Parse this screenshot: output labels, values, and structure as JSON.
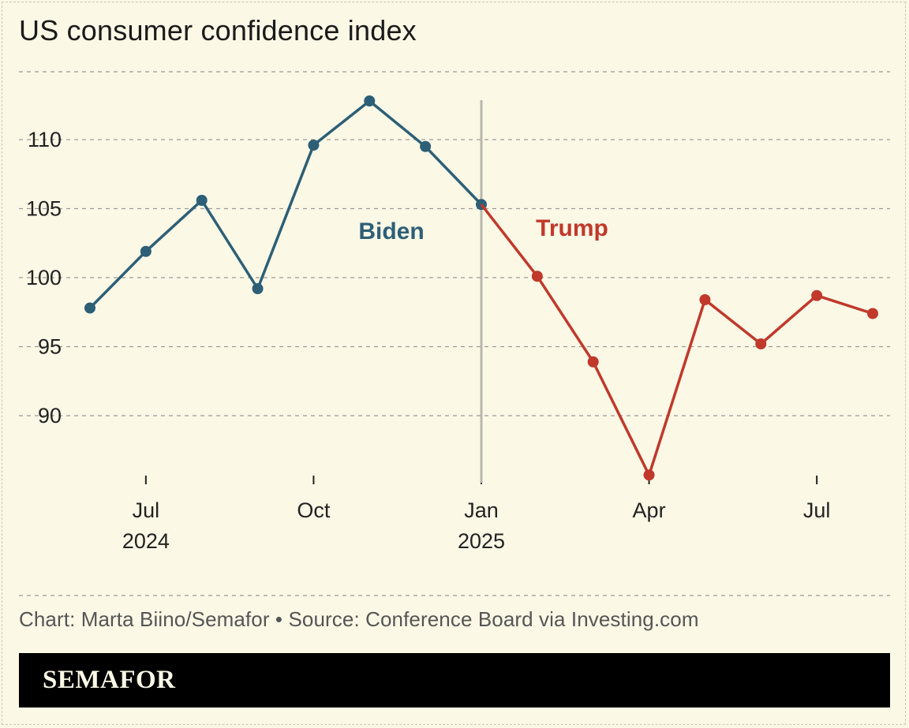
{
  "title": "US consumer confidence index",
  "source": "Chart: Marta Biino/Semafor • Source: Conference Board via Investing.com",
  "brand": "SEMAFOR",
  "colors": {
    "background": "#fbf8e6",
    "biden": "#2d5f76",
    "trump": "#c0392b",
    "grid": "#9a9a9a",
    "divider": "#b9b7ac"
  },
  "chart_data": {
    "type": "line",
    "title": "US consumer confidence index",
    "xlabel": "",
    "ylabel": "",
    "ylim": [
      85.5,
      114.4
    ],
    "yticks": [
      90,
      95,
      100,
      105,
      110
    ],
    "xlim": [
      -0.3,
      14.3
    ],
    "xticks": [
      {
        "x": 1,
        "label": "Jul",
        "sublabel": "2024"
      },
      {
        "x": 4,
        "label": "Oct",
        "sublabel": ""
      },
      {
        "x": 7,
        "label": "Jan",
        "sublabel": "2025"
      },
      {
        "x": 10,
        "label": "Apr",
        "sublabel": ""
      },
      {
        "x": 13,
        "label": "Jul",
        "sublabel": ""
      }
    ],
    "divider_x": 7,
    "series": [
      {
        "name": "Biden",
        "x": [
          0,
          1,
          2,
          3,
          4,
          5,
          6,
          7
        ],
        "values": [
          97.8,
          101.9,
          105.6,
          99.2,
          109.6,
          112.8,
          109.5,
          105.3
        ]
      },
      {
        "name": "Trump",
        "x": [
          7,
          8,
          9,
          10,
          11,
          12,
          13,
          14
        ],
        "values": [
          105.3,
          100.1,
          93.9,
          85.7,
          98.4,
          95.2,
          98.7,
          97.4
        ]
      }
    ],
    "annotations": [
      {
        "text": "Biden",
        "series": "Biden"
      },
      {
        "text": "Trump",
        "series": "Trump"
      }
    ]
  }
}
